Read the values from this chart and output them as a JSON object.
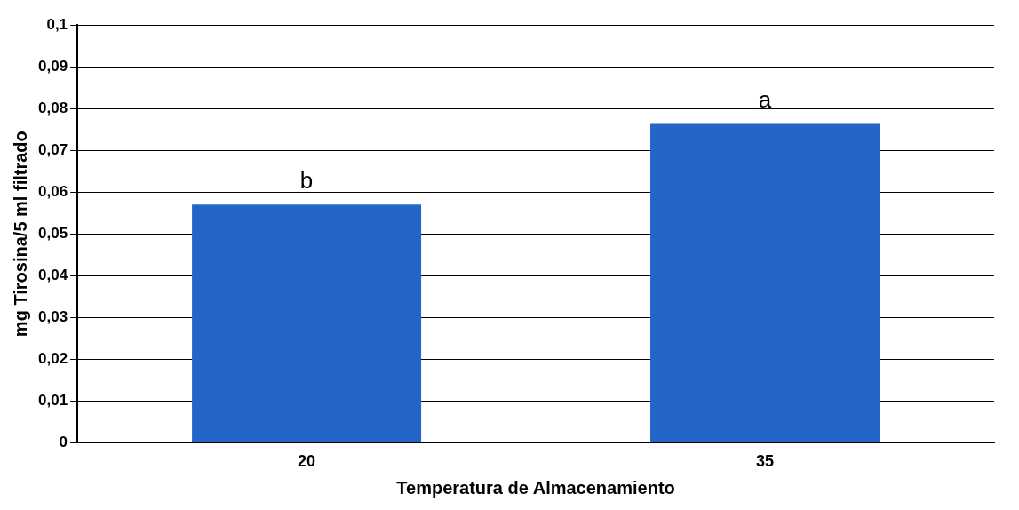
{
  "chart_data": {
    "type": "bar",
    "xlabel": "Temperatura de Almacenamiento",
    "ylabel": "mg Tirosina/5 ml filtrado",
    "categories": [
      "20",
      "35"
    ],
    "values": [
      0.057,
      0.0765
    ],
    "color": "#2466c8",
    "ylim": [
      0,
      0.1
    ],
    "yticks": [
      0,
      {
        "value": 0.01,
        "label": "0,01"
      },
      {
        "value": 0.02,
        "label": "0,02"
      },
      {
        "value": 0.03,
        "label": "0,03"
      },
      {
        "value": 0.04,
        "label": "0,04"
      },
      {
        "value": 0.05,
        "label": "0,05"
      },
      {
        "value": 0.06,
        "label": "0,06"
      },
      {
        "value": 0.07,
        "label": "0,07"
      },
      {
        "value": 0.08,
        "label": "0,08"
      },
      {
        "value": 0.09,
        "label": "0,09"
      },
      {
        "value": 0.1,
        "label": "0,1"
      }
    ],
    "grid": "y",
    "annotations": [
      {
        "text": "b",
        "x": "20",
        "y": 0.057
      },
      {
        "text": "a",
        "x": "35",
        "y": 0.0765
      }
    ]
  }
}
